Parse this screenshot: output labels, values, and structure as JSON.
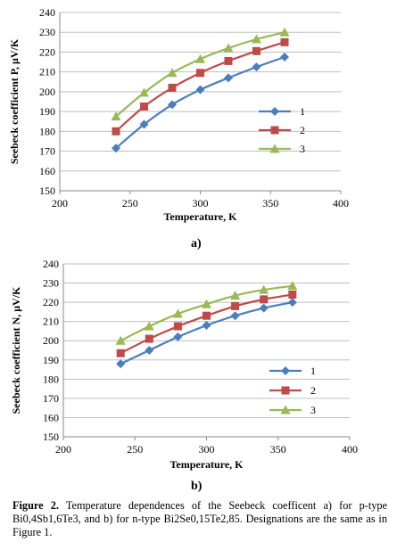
{
  "chart_data": [
    {
      "type": "line",
      "panel_label": "a)",
      "xlabel": "Temperature, K",
      "ylabel": "Seebeck coefficient P, μV/K",
      "xlim": [
        200,
        400
      ],
      "ylim": [
        150,
        240
      ],
      "x_ticks": [
        200,
        250,
        300,
        350,
        400
      ],
      "y_ticks": [
        150,
        160,
        170,
        180,
        190,
        200,
        210,
        220,
        230,
        240
      ],
      "grid": true,
      "legend_position": "right",
      "x": [
        240,
        260,
        280,
        300,
        320,
        340,
        360
      ],
      "series": [
        {
          "name": "1",
          "color": "#4a7ebb",
          "marker": "diamond",
          "values": [
            171.5,
            183.5,
            193.5,
            201,
            207,
            212.5,
            217.5
          ]
        },
        {
          "name": "2",
          "color": "#be4b48",
          "marker": "square",
          "values": [
            180,
            192.5,
            202,
            209.5,
            215.5,
            220.5,
            225
          ]
        },
        {
          "name": "3",
          "color": "#98b954",
          "marker": "triangle",
          "values": [
            187.5,
            199.5,
            209.5,
            216.5,
            222,
            226.5,
            230
          ]
        }
      ]
    },
    {
      "type": "line",
      "panel_label": "b)",
      "xlabel": "Temperature, K",
      "ylabel": "Seebeck coefficient N, μV/K",
      "xlim": [
        200,
        400
      ],
      "ylim": [
        150,
        240
      ],
      "x_ticks": [
        200,
        250,
        300,
        350,
        400
      ],
      "y_ticks": [
        150,
        160,
        170,
        180,
        190,
        200,
        210,
        220,
        230,
        240
      ],
      "grid": true,
      "legend_position": "right",
      "x": [
        240,
        260,
        280,
        300,
        320,
        340,
        360
      ],
      "series": [
        {
          "name": "1",
          "color": "#4a7ebb",
          "marker": "diamond",
          "values": [
            188,
            195,
            202,
            208,
            213,
            217,
            220
          ]
        },
        {
          "name": "2",
          "color": "#be4b48",
          "marker": "square",
          "values": [
            193.5,
            201,
            207.5,
            213,
            218,
            221.5,
            224
          ]
        },
        {
          "name": "3",
          "color": "#98b954",
          "marker": "triangle",
          "values": [
            200,
            207.5,
            214,
            219,
            223.5,
            226.5,
            228.5
          ]
        }
      ]
    }
  ],
  "caption": {
    "figure_label": "Figure 2.",
    "text": " Temperature dependences of the Seebeck coefficent a) for p-type Bi0,4Sb1,6Te3, and b) for n-type  Bi2Se0,15Te2,85. Designations are the same as in Figure 1."
  }
}
